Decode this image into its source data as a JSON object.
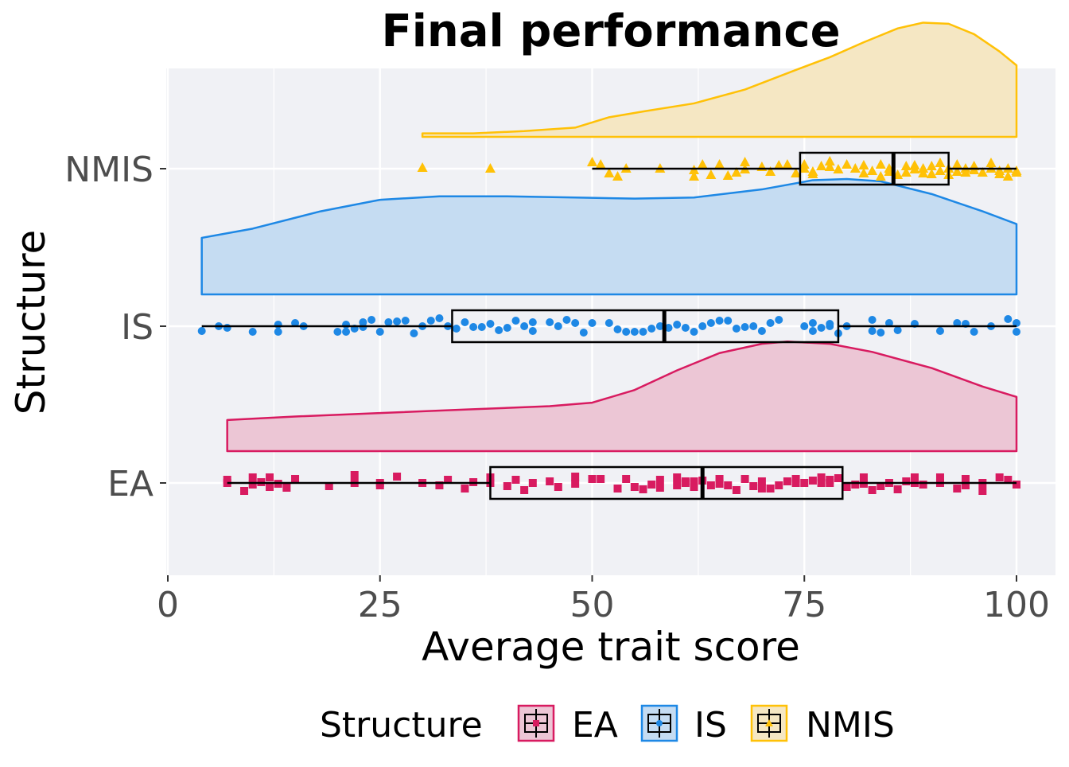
{
  "chart_data": {
    "type": "raincloud",
    "title": "Final performance",
    "xlabel": "Average trait score",
    "ylabel": "Structure",
    "xlim": [
      0,
      100
    ],
    "x_ticks": [
      0,
      25,
      50,
      75,
      100
    ],
    "grid": true,
    "legend": {
      "title": "Structure",
      "placement": "bottom",
      "entries": [
        "EA",
        "IS",
        "NMIS"
      ]
    },
    "categories": [
      "EA",
      "IS",
      "NMIS"
    ],
    "series": [
      {
        "name": "EA",
        "color": "#d81b60",
        "fill": "#ecc6d5",
        "marker": "square",
        "box": {
          "min": 7,
          "q1": 38,
          "median": 63,
          "q3": 79.5,
          "max": 100
        },
        "density": [
          [
            7,
            0.27
          ],
          [
            15,
            0.3
          ],
          [
            25,
            0.33
          ],
          [
            35,
            0.36
          ],
          [
            45,
            0.39
          ],
          [
            50,
            0.42
          ],
          [
            55,
            0.53
          ],
          [
            60,
            0.7
          ],
          [
            65,
            0.85
          ],
          [
            70,
            0.93
          ],
          [
            73,
            0.95
          ],
          [
            78,
            0.93
          ],
          [
            83,
            0.86
          ],
          [
            90,
            0.72
          ],
          [
            96,
            0.56
          ],
          [
            100,
            0.47
          ]
        ],
        "points": [
          [
            7,
            0.0
          ],
          [
            7,
            -0.04
          ],
          [
            9,
            0.1
          ],
          [
            10,
            -0.07
          ],
          [
            10,
            0.02
          ],
          [
            11,
            -0.01
          ],
          [
            12,
            0.05
          ],
          [
            12,
            -0.07
          ],
          [
            13,
            0.01
          ],
          [
            14,
            0.06
          ],
          [
            15,
            -0.05
          ],
          [
            19,
            0.04
          ],
          [
            22,
            0.0
          ],
          [
            22,
            -0.1
          ],
          [
            25,
            0.03
          ],
          [
            25,
            0.0
          ],
          [
            27,
            -0.08
          ],
          [
            30,
            0.0
          ],
          [
            32,
            0.03
          ],
          [
            33,
            -0.04
          ],
          [
            35,
            0.07
          ],
          [
            36,
            -0.01
          ],
          [
            38,
            0.0
          ],
          [
            38,
            -0.07
          ],
          [
            40,
            0.04
          ],
          [
            41,
            -0.04
          ],
          [
            42,
            0.09
          ],
          [
            43,
            0.0
          ],
          [
            45,
            -0.02
          ],
          [
            46,
            0.05
          ],
          [
            48,
            0.01
          ],
          [
            48,
            -0.08
          ],
          [
            50,
            -0.05
          ],
          [
            51,
            -0.05
          ],
          [
            53,
            0.07
          ],
          [
            54,
            -0.05
          ],
          [
            55,
            0.05
          ],
          [
            56,
            0.08
          ],
          [
            57,
            0.02
          ],
          [
            58,
            0.06
          ],
          [
            58,
            -0.04
          ],
          [
            60,
            0.03
          ],
          [
            60,
            -0.07
          ],
          [
            61,
            -0.02
          ],
          [
            61,
            0.0
          ],
          [
            62,
            -0.02
          ],
          [
            62,
            0.05
          ],
          [
            63,
            -0.03
          ],
          [
            64,
            0.03
          ],
          [
            65,
            0.01
          ],
          [
            65,
            -0.05
          ],
          [
            66,
            0.03
          ],
          [
            67,
            0.09
          ],
          [
            68,
            -0.05
          ],
          [
            69,
            0.04
          ],
          [
            70,
            -0.02
          ],
          [
            70,
            0.07
          ],
          [
            71,
            0.07
          ],
          [
            72,
            0.03
          ],
          [
            73,
            -0.02
          ],
          [
            74,
            0.0
          ],
          [
            74,
            -0.05
          ],
          [
            75,
            0.0
          ],
          [
            76,
            -0.03
          ],
          [
            77,
            0.0
          ],
          [
            77,
            -0.07
          ],
          [
            78,
            -0.04
          ],
          [
            78,
            0.0
          ],
          [
            79,
            -0.06
          ],
          [
            80,
            0.05
          ],
          [
            81,
            0.02
          ],
          [
            82,
            -0.07
          ],
          [
            82,
            0.01
          ],
          [
            83,
            0.09
          ],
          [
            84,
            0.04
          ],
          [
            85,
            0.0
          ],
          [
            86,
            0.08
          ],
          [
            87,
            -0.02
          ],
          [
            88,
            0.0
          ],
          [
            88,
            -0.07
          ],
          [
            89,
            0.02
          ],
          [
            91,
            0.0
          ],
          [
            91,
            -0.07
          ],
          [
            93,
            0.07
          ],
          [
            94,
            0.03
          ],
          [
            94,
            -0.05
          ],
          [
            96,
            0.1
          ],
          [
            96,
            0.0
          ],
          [
            98,
            -0.07
          ],
          [
            99,
            -0.04
          ],
          [
            100,
            0.02
          ]
        ]
      },
      {
        "name": "IS",
        "color": "#1e88e5",
        "fill": "#c5dcf2",
        "marker": "circle",
        "box": {
          "min": 4,
          "q1": 33.5,
          "median": 58.5,
          "q3": 79,
          "max": 100
        },
        "density": [
          [
            4,
            0.49
          ],
          [
            10,
            0.57
          ],
          [
            18,
            0.72
          ],
          [
            25,
            0.82
          ],
          [
            32,
            0.85
          ],
          [
            40,
            0.85
          ],
          [
            48,
            0.84
          ],
          [
            55,
            0.83
          ],
          [
            62,
            0.84
          ],
          [
            70,
            0.91
          ],
          [
            76,
            0.99
          ],
          [
            80,
            1.0
          ],
          [
            84,
            0.98
          ],
          [
            90,
            0.87
          ],
          [
            96,
            0.72
          ],
          [
            100,
            0.61
          ]
        ],
        "points": [
          [
            4,
            0.06
          ],
          [
            6,
            0.0
          ],
          [
            7,
            0.02
          ],
          [
            10,
            0.07
          ],
          [
            13,
            0.07
          ],
          [
            13,
            -0.02
          ],
          [
            15,
            -0.04
          ],
          [
            16,
            0.0
          ],
          [
            20,
            0.07
          ],
          [
            21,
            0.07
          ],
          [
            21,
            -0.02
          ],
          [
            22,
            0.03
          ],
          [
            23,
            -0.05
          ],
          [
            23,
            0.01
          ],
          [
            24,
            -0.08
          ],
          [
            25,
            0.07
          ],
          [
            26,
            -0.05
          ],
          [
            27,
            -0.06
          ],
          [
            28,
            -0.07
          ],
          [
            29,
            0.09
          ],
          [
            30,
            0.0
          ],
          [
            31,
            -0.07
          ],
          [
            32,
            -0.1
          ],
          [
            33,
            0.0
          ],
          [
            34,
            0.03
          ],
          [
            35,
            -0.05
          ],
          [
            36,
            0.01
          ],
          [
            37,
            0.01
          ],
          [
            38,
            -0.03
          ],
          [
            39,
            0.05
          ],
          [
            40,
            0.02
          ],
          [
            41,
            -0.07
          ],
          [
            42,
            0.0
          ],
          [
            43,
            -0.05
          ],
          [
            43,
            0.06
          ],
          [
            45,
            -0.05
          ],
          [
            46,
            0.0
          ],
          [
            47,
            -0.08
          ],
          [
            48,
            -0.04
          ],
          [
            49,
            0.08
          ],
          [
            50,
            -0.04
          ],
          [
            52,
            -0.04
          ],
          [
            53,
            0.04
          ],
          [
            54,
            0.07
          ],
          [
            55,
            0.07
          ],
          [
            56,
            0.07
          ],
          [
            57,
            0.03
          ],
          [
            58,
            0.0
          ],
          [
            59,
            0.02
          ],
          [
            60,
            -0.02
          ],
          [
            61,
            0.02
          ],
          [
            62,
            0.07
          ],
          [
            63,
            0.0
          ],
          [
            64,
            -0.04
          ],
          [
            65,
            -0.07
          ],
          [
            66,
            -0.07
          ],
          [
            67,
            0.03
          ],
          [
            68,
            0.01
          ],
          [
            69,
            0.0
          ],
          [
            70,
            0.06
          ],
          [
            71,
            -0.04
          ],
          [
            72,
            -0.08
          ],
          [
            75,
            0.0
          ],
          [
            76,
            0.06
          ],
          [
            76,
            -0.04
          ],
          [
            77,
            0.02
          ],
          [
            78,
            0.0
          ],
          [
            78,
            -0.03
          ],
          [
            79,
            0.09
          ],
          [
            80,
            0.0
          ],
          [
            83,
            -0.08
          ],
          [
            83,
            0.06
          ],
          [
            84,
            0.08
          ],
          [
            85,
            -0.04
          ],
          [
            86,
            0.05
          ],
          [
            88,
            -0.03
          ],
          [
            91,
            0.06
          ],
          [
            93,
            -0.04
          ],
          [
            94,
            -0.03
          ],
          [
            95,
            0.07
          ],
          [
            97,
            0.0
          ],
          [
            99,
            -0.09
          ],
          [
            100,
            -0.04
          ],
          [
            100,
            0.07
          ]
        ]
      },
      {
        "name": "NMIS",
        "color": "#ffc107",
        "fill": "#f5e7c3",
        "marker": "triangle",
        "box": {
          "min": 50,
          "q1": 74.5,
          "median": 85.5,
          "q3": 92,
          "max": 100
        },
        "density": [
          [
            30,
            0.03
          ],
          [
            36,
            0.03
          ],
          [
            42,
            0.05
          ],
          [
            48,
            0.08
          ],
          [
            52,
            0.17
          ],
          [
            56,
            0.22
          ],
          [
            62,
            0.29
          ],
          [
            68,
            0.41
          ],
          [
            74,
            0.58
          ],
          [
            78,
            0.69
          ],
          [
            82,
            0.82
          ],
          [
            86,
            0.94
          ],
          [
            89,
            0.99
          ],
          [
            92,
            0.98
          ],
          [
            95,
            0.89
          ],
          [
            98,
            0.74
          ],
          [
            100,
            0.62
          ]
        ],
        "points": [
          [
            30,
            -0.01
          ],
          [
            38,
            0.0
          ],
          [
            50,
            -0.08
          ],
          [
            51,
            -0.05
          ],
          [
            52,
            0.06
          ],
          [
            53,
            0.1
          ],
          [
            54,
            0.0
          ],
          [
            58,
            0.0
          ],
          [
            62,
            0.1
          ],
          [
            62,
            0.02
          ],
          [
            63,
            -0.05
          ],
          [
            64,
            0.08
          ],
          [
            65,
            -0.05
          ],
          [
            66,
            0.09
          ],
          [
            67,
            0.05
          ],
          [
            68,
            0.01
          ],
          [
            68,
            -0.08
          ],
          [
            70,
            -0.02
          ],
          [
            71,
            0.04
          ],
          [
            72,
            -0.04
          ],
          [
            73,
            -0.05
          ],
          [
            74,
            0.06
          ],
          [
            75,
            0.0
          ],
          [
            75,
            -0.05
          ],
          [
            76,
            0.04
          ],
          [
            76,
            0.07
          ],
          [
            77,
            -0.03
          ],
          [
            78,
            -0.02
          ],
          [
            78,
            -0.09
          ],
          [
            79,
            0.01
          ],
          [
            80,
            -0.05
          ],
          [
            81,
            0.0
          ],
          [
            82,
            0.06
          ],
          [
            82,
            -0.04
          ],
          [
            83,
            0.03
          ],
          [
            84,
            0.1
          ],
          [
            84,
            -0.05
          ],
          [
            85,
            0.04
          ],
          [
            85,
            0.0
          ],
          [
            86,
            0.08
          ],
          [
            87,
            -0.03
          ],
          [
            87,
            0.05
          ],
          [
            88,
            -0.04
          ],
          [
            88,
            0.01
          ],
          [
            89,
            0.06
          ],
          [
            89,
            0.0
          ],
          [
            90,
            -0.03
          ],
          [
            90,
            0.07
          ],
          [
            91,
            0.03
          ],
          [
            91,
            -0.07
          ],
          [
            92,
            0.0
          ],
          [
            92,
            0.08
          ],
          [
            93,
            0.04
          ],
          [
            93,
            -0.05
          ],
          [
            94,
            0.05
          ],
          [
            94,
            0.0
          ],
          [
            95,
            -0.03
          ],
          [
            95,
            0.02
          ],
          [
            96,
            0.05
          ],
          [
            97,
            0.0
          ],
          [
            97,
            -0.07
          ],
          [
            98,
            0.03
          ],
          [
            98,
            0.07
          ],
          [
            99,
            0.1
          ],
          [
            99,
            0.0
          ],
          [
            100,
            0.05
          ],
          [
            100,
            0.03
          ]
        ]
      }
    ]
  }
}
